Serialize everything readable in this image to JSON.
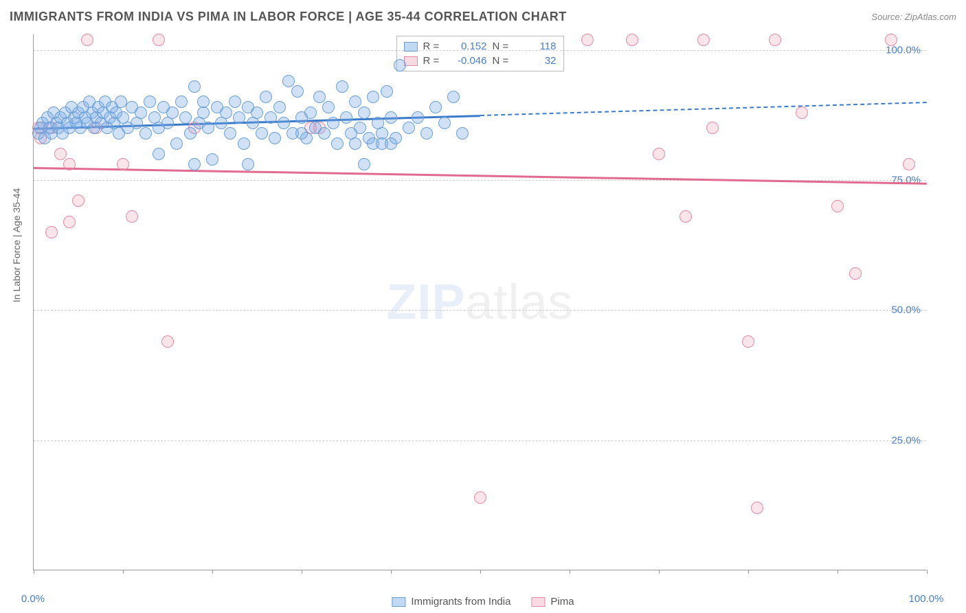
{
  "header": {
    "title": "IMMIGRANTS FROM INDIA VS PIMA IN LABOR FORCE | AGE 35-44 CORRELATION CHART",
    "source_label": "Source:",
    "source_name": "ZipAtlas.com"
  },
  "chart": {
    "type": "scatter",
    "ylabel": "In Labor Force | Age 35-44",
    "xlim": [
      0,
      100
    ],
    "ylim": [
      0,
      103
    ],
    "background_color": "#ffffff",
    "grid_color": "#cccccc",
    "axis_color": "#999999",
    "label_color": "#4a7fc9",
    "yticks": [
      {
        "value": 25,
        "label": "25.0%"
      },
      {
        "value": 50,
        "label": "50.0%"
      },
      {
        "value": 75,
        "label": "75.0%"
      },
      {
        "value": 100,
        "label": "100.0%"
      }
    ],
    "xticks_minor": [
      0,
      10,
      20,
      30,
      40,
      50,
      60,
      70,
      80,
      90,
      100
    ],
    "xticks_labels": [
      {
        "value": 0,
        "label": "0.0%"
      },
      {
        "value": 100,
        "label": "100.0%"
      }
    ],
    "series": [
      {
        "id": "india",
        "name": "Immigrants from India",
        "color_fill": "rgba(120,170,230,0.35)",
        "color_stroke": "#6a9fd8",
        "line_color": "#3a7ac8",
        "marker_radius": 9,
        "R": "0.152",
        "N": "118",
        "regression": {
          "x1": 0,
          "y1": 85,
          "x_solid_end": 50,
          "x2": 100,
          "y2": 90
        },
        "points": [
          [
            0.5,
            84
          ],
          [
            0.8,
            85
          ],
          [
            1,
            86
          ],
          [
            1.2,
            83
          ],
          [
            1.5,
            87
          ],
          [
            1.8,
            85
          ],
          [
            2,
            84
          ],
          [
            2.2,
            88
          ],
          [
            2.5,
            86
          ],
          [
            2.8,
            85
          ],
          [
            3,
            87
          ],
          [
            3.2,
            84
          ],
          [
            3.5,
            88
          ],
          [
            3.8,
            86
          ],
          [
            4,
            85
          ],
          [
            4.2,
            89
          ],
          [
            4.5,
            87
          ],
          [
            4.8,
            86
          ],
          [
            5,
            88
          ],
          [
            5.2,
            85
          ],
          [
            5.5,
            89
          ],
          [
            5.8,
            87
          ],
          [
            6,
            86
          ],
          [
            6.2,
            90
          ],
          [
            6.5,
            88
          ],
          [
            6.8,
            85
          ],
          [
            7,
            87
          ],
          [
            7.2,
            89
          ],
          [
            7.5,
            86
          ],
          [
            7.8,
            88
          ],
          [
            8,
            90
          ],
          [
            8.2,
            85
          ],
          [
            8.5,
            87
          ],
          [
            8.8,
            89
          ],
          [
            9,
            86
          ],
          [
            9.2,
            88
          ],
          [
            9.5,
            84
          ],
          [
            9.8,
            90
          ],
          [
            10,
            87
          ],
          [
            10.5,
            85
          ],
          [
            11,
            89
          ],
          [
            11.5,
            86
          ],
          [
            12,
            88
          ],
          [
            12.5,
            84
          ],
          [
            13,
            90
          ],
          [
            13.5,
            87
          ],
          [
            14,
            85
          ],
          [
            14.5,
            89
          ],
          [
            15,
            86
          ],
          [
            15.5,
            88
          ],
          [
            16,
            82
          ],
          [
            16.5,
            90
          ],
          [
            17,
            87
          ],
          [
            17.5,
            84
          ],
          [
            18,
            93
          ],
          [
            18.5,
            86
          ],
          [
            19,
            88
          ],
          [
            19.5,
            85
          ],
          [
            20,
            79
          ],
          [
            20.5,
            89
          ],
          [
            21,
            86
          ],
          [
            21.5,
            88
          ],
          [
            22,
            84
          ],
          [
            22.5,
            90
          ],
          [
            23,
            87
          ],
          [
            23.5,
            82
          ],
          [
            24,
            89
          ],
          [
            24.5,
            86
          ],
          [
            25,
            88
          ],
          [
            25.5,
            84
          ],
          [
            26,
            91
          ],
          [
            26.5,
            87
          ],
          [
            27,
            83
          ],
          [
            27.5,
            89
          ],
          [
            28,
            86
          ],
          [
            28.5,
            94
          ],
          [
            29,
            84
          ],
          [
            29.5,
            92
          ],
          [
            30,
            87
          ],
          [
            30.5,
            83
          ],
          [
            31,
            88
          ],
          [
            31.5,
            85
          ],
          [
            32,
            91
          ],
          [
            32.5,
            84
          ],
          [
            33,
            89
          ],
          [
            33.5,
            86
          ],
          [
            34,
            82
          ],
          [
            34.5,
            93
          ],
          [
            35,
            87
          ],
          [
            35.5,
            84
          ],
          [
            36,
            90
          ],
          [
            36.5,
            85
          ],
          [
            37,
            88
          ],
          [
            37.5,
            83
          ],
          [
            38,
            91
          ],
          [
            38.5,
            86
          ],
          [
            39,
            84
          ],
          [
            39.5,
            92
          ],
          [
            40,
            87
          ],
          [
            40.5,
            83
          ],
          [
            41,
            97
          ],
          [
            42,
            85
          ],
          [
            43,
            87
          ],
          [
            44,
            84
          ],
          [
            45,
            89
          ],
          [
            46,
            86
          ],
          [
            47,
            91
          ],
          [
            48,
            84
          ],
          [
            37,
            78
          ],
          [
            24,
            78
          ],
          [
            36,
            82
          ],
          [
            38,
            82
          ],
          [
            39,
            82
          ],
          [
            40,
            82
          ],
          [
            30,
            84
          ],
          [
            14,
            80
          ],
          [
            18,
            78
          ],
          [
            19,
            90
          ]
        ]
      },
      {
        "id": "pima",
        "name": "Pima",
        "color_fill": "rgba(235,150,175,0.25)",
        "color_stroke": "#e48aa5",
        "line_color": "#e06a90",
        "marker_radius": 9,
        "R": "-0.046",
        "N": "32",
        "regression": {
          "x1": 0,
          "y1": 77.5,
          "x_solid_end": 100,
          "x2": 100,
          "y2": 74.5
        },
        "points": [
          [
            0.5,
            85
          ],
          [
            0.8,
            83
          ],
          [
            2,
            85
          ],
          [
            3,
            80
          ],
          [
            4,
            78
          ],
          [
            4,
            67
          ],
          [
            5,
            71
          ],
          [
            6,
            102
          ],
          [
            7,
            85
          ],
          [
            10,
            78
          ],
          [
            11,
            68
          ],
          [
            14,
            102
          ],
          [
            15,
            44
          ],
          [
            18,
            85
          ],
          [
            31,
            85
          ],
          [
            32,
            85
          ],
          [
            50,
            14
          ],
          [
            62,
            102
          ],
          [
            67,
            102
          ],
          [
            70,
            80
          ],
          [
            73,
            68
          ],
          [
            75,
            102
          ],
          [
            76,
            85
          ],
          [
            80,
            44
          ],
          [
            81,
            12
          ],
          [
            83,
            102
          ],
          [
            86,
            88
          ],
          [
            90,
            70
          ],
          [
            92,
            57
          ],
          [
            96,
            102
          ],
          [
            98,
            78
          ],
          [
            2,
            65
          ]
        ]
      }
    ],
    "watermark": {
      "part1": "ZIP",
      "part2": "atlas"
    }
  },
  "legend_top": {
    "rows": [
      {
        "swatch": "blue",
        "R_label": "R =",
        "R_val_bind": "chart.series.0.R",
        "N_label": "N =",
        "N_val_bind": "chart.series.0.N"
      },
      {
        "swatch": "pink",
        "R_label": "R =",
        "R_val_bind": "chart.series.1.R",
        "N_label": "N =",
        "N_val_bind": "chart.series.1.N"
      }
    ]
  },
  "legend_bottom": [
    {
      "swatch": "blue",
      "label_bind": "chart.series.0.name"
    },
    {
      "swatch": "pink",
      "label_bind": "chart.series.1.name"
    }
  ]
}
